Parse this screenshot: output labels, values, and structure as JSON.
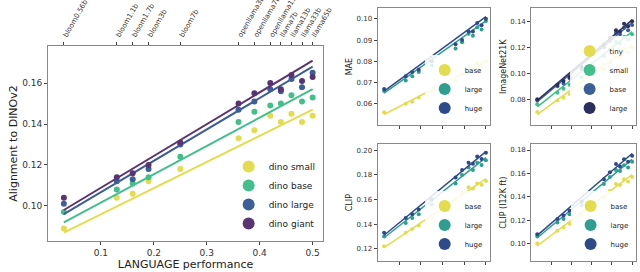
{
  "chart_data": [
    {
      "type": "scatter",
      "x_label": "LANGUAGE performance",
      "y_label": "Alignment to DINOv2",
      "x": [
        0.03,
        0.13,
        0.16,
        0.19,
        0.25,
        0.36,
        0.39,
        0.42,
        0.44,
        0.46,
        0.48,
        0.5
      ],
      "xlim": [
        0,
        0.52
      ],
      "xticks": [
        0.1,
        0.2,
        0.3,
        0.4,
        0.5
      ],
      "x2lim": [
        0,
        0.52
      ],
      "x2ticks": [
        {
          "value": 0.03,
          "label": "bloom0.56b"
        },
        {
          "value": 0.13,
          "label": "bloom1.1b"
        },
        {
          "value": 0.16,
          "label": "bloom1.7b"
        },
        {
          "value": 0.19,
          "label": "bloom3b"
        },
        {
          "value": 0.25,
          "label": "bloom7b"
        },
        {
          "value": 0.36,
          "label": "openllama3b"
        },
        {
          "value": 0.39,
          "label": "openllama7b"
        },
        {
          "value": 0.42,
          "label": "openllama13b"
        },
        {
          "value": 0.44,
          "label": "llama7b"
        },
        {
          "value": 0.46,
          "label": "llama13b"
        },
        {
          "value": 0.48,
          "label": "llama33b"
        },
        {
          "value": 0.5,
          "label": "llama65b"
        }
      ],
      "ylim": [
        0.083,
        0.178
      ],
      "yticks": [
        {
          "value": 0.1,
          "label": "0.10"
        },
        0.12,
        0.14,
        0.16
      ],
      "grid": false,
      "legend": "lower right",
      "series": [
        {
          "name": "dino small",
          "color": "#e3dc4f",
          "values": [
            0.089,
            0.104,
            0.106,
            0.112,
            0.118,
            0.133,
            0.137,
            0.144,
            0.141,
            0.145,
            0.141,
            0.144
          ],
          "trend": {
            "x": [
              0.03,
              0.5
            ],
            "values": [
              0.087,
              0.147
            ]
          }
        },
        {
          "name": "dino base",
          "color": "#43bf8c",
          "values": [
            0.097,
            0.108,
            0.111,
            0.114,
            0.124,
            0.141,
            0.146,
            0.149,
            0.15,
            0.154,
            0.151,
            0.153
          ],
          "trend": {
            "x": [
              0.03,
              0.5
            ],
            "values": [
              0.092,
              0.157
            ]
          }
        },
        {
          "name": "dino large",
          "color": "#3c5f98",
          "values": [
            0.101,
            0.112,
            0.113,
            0.118,
            0.13,
            0.147,
            0.151,
            0.157,
            0.156,
            0.162,
            0.158,
            0.165
          ],
          "trend": {
            "x": [
              0.03,
              0.5
            ],
            "values": [
              0.096,
              0.168
            ]
          }
        },
        {
          "name": "dino giant",
          "color": "#5a3373",
          "values": [
            0.104,
            0.114,
            0.116,
            0.12,
            0.131,
            0.15,
            0.155,
            0.16,
            0.157,
            0.164,
            0.161,
            0.163
          ],
          "trend": {
            "x": [
              0.03,
              0.5
            ],
            "values": [
              0.098,
              0.171
            ]
          }
        }
      ]
    },
    {
      "type": "scatter",
      "y_label": "MAE",
      "x": [
        0.03,
        0.13,
        0.16,
        0.19,
        0.25,
        0.36,
        0.39,
        0.42,
        0.44,
        0.46,
        0.48,
        0.5
      ],
      "xlim": [
        0,
        0.52
      ],
      "xticks": [
        0.1,
        0.2,
        0.3,
        0.4,
        0.5
      ],
      "ylim": [
        0.05,
        0.105
      ],
      "yticks": [
        0.06,
        0.07,
        0.08,
        0.09,
        {
          "value": 0.1,
          "label": "0.10"
        }
      ],
      "grid": false,
      "legend": "lower right",
      "tick_labels": "y",
      "series": [
        {
          "name": "base",
          "color": "#e3dc4f",
          "values": [
            0.056,
            0.06,
            0.061,
            0.063,
            0.066,
            0.071,
            0.074,
            0.077,
            0.076,
            0.079,
            0.078,
            0.08
          ],
          "trend": {
            "x": [
              0.03,
              0.5
            ],
            "values": [
              0.055,
              0.08
            ]
          }
        },
        {
          "name": "large",
          "color": "#2f9e91",
          "values": [
            0.066,
            0.071,
            0.073,
            0.075,
            0.078,
            0.086,
            0.089,
            0.093,
            0.092,
            0.096,
            0.095,
            0.099
          ],
          "trend": {
            "x": [
              0.03,
              0.5
            ],
            "values": [
              0.065,
              0.099
            ]
          }
        },
        {
          "name": "huge",
          "color": "#2f4a8a",
          "values": [
            0.067,
            0.073,
            0.075,
            0.076,
            0.08,
            0.088,
            0.09,
            0.094,
            0.094,
            0.098,
            0.097,
            0.1
          ],
          "trend": {
            "x": [
              0.03,
              0.5
            ],
            "values": [
              0.066,
              0.101
            ]
          }
        }
      ]
    },
    {
      "type": "scatter",
      "y_label": "ImageNet21K",
      "x": [
        0.03,
        0.13,
        0.16,
        0.19,
        0.25,
        0.36,
        0.39,
        0.42,
        0.44,
        0.46,
        0.48,
        0.5
      ],
      "xlim": [
        0,
        0.52
      ],
      "xticks": [
        0.1,
        0.2,
        0.3,
        0.4,
        0.5
      ],
      "ylim": [
        0.06,
        0.15
      ],
      "yticks": [
        0.08,
        {
          "value": 0.1,
          "label": "0.10"
        },
        0.12,
        0.14
      ],
      "grid": false,
      "legend": "lower right",
      "tick_labels": "y",
      "series": [
        {
          "name": "tiny",
          "color": "#e3dc4f",
          "values": [
            0.07,
            0.079,
            0.081,
            0.084,
            0.089,
            0.103,
            0.108,
            0.113,
            0.112,
            0.118,
            0.116,
            0.12
          ],
          "trend": {
            "x": [
              0.03,
              0.5
            ],
            "values": [
              0.068,
              0.122
            ]
          }
        },
        {
          "name": "small",
          "color": "#43bf8c",
          "values": [
            0.076,
            0.085,
            0.088,
            0.091,
            0.097,
            0.113,
            0.118,
            0.124,
            0.123,
            0.128,
            0.126,
            0.13
          ],
          "trend": {
            "x": [
              0.03,
              0.5
            ],
            "values": [
              0.074,
              0.132
            ]
          }
        },
        {
          "name": "base",
          "color": "#3c5f98",
          "values": [
            0.079,
            0.09,
            0.092,
            0.096,
            0.103,
            0.12,
            0.125,
            0.131,
            0.13,
            0.135,
            0.133,
            0.137
          ],
          "trend": {
            "x": [
              0.03,
              0.5
            ],
            "values": [
              0.078,
              0.139
            ]
          }
        },
        {
          "name": "large",
          "color": "#2b2f5e",
          "values": [
            0.08,
            0.091,
            0.094,
            0.097,
            0.105,
            0.122,
            0.127,
            0.133,
            0.132,
            0.138,
            0.136,
            0.14
          ],
          "trend": {
            "x": [
              0.03,
              0.5
            ],
            "values": [
              0.079,
              0.141
            ]
          }
        }
      ]
    },
    {
      "type": "scatter",
      "y_label": "CLIP",
      "x": [
        0.03,
        0.13,
        0.16,
        0.19,
        0.25,
        0.36,
        0.39,
        0.42,
        0.44,
        0.46,
        0.48,
        0.5
      ],
      "xlim": [
        0,
        0.52
      ],
      "xticks": [
        0.1,
        0.2,
        0.3,
        0.4,
        0.5
      ],
      "ylim": [
        0.11,
        0.205
      ],
      "yticks": [
        0.12,
        0.14,
        0.16,
        0.18,
        {
          "value": 0.2,
          "label": "0.20"
        }
      ],
      "grid": false,
      "legend": "lower right",
      "tick_labels": "y",
      "series": [
        {
          "name": "base",
          "color": "#e3dc4f",
          "values": [
            0.122,
            0.133,
            0.136,
            0.139,
            0.145,
            0.16,
            0.165,
            0.17,
            0.169,
            0.173,
            0.172,
            0.175
          ],
          "trend": {
            "x": [
              0.03,
              0.5
            ],
            "values": [
              0.121,
              0.177
            ]
          }
        },
        {
          "name": "large",
          "color": "#2f9e91",
          "values": [
            0.13,
            0.141,
            0.145,
            0.148,
            0.156,
            0.173,
            0.18,
            0.186,
            0.184,
            0.19,
            0.188,
            0.192
          ],
          "trend": {
            "x": [
              0.03,
              0.5
            ],
            "values": [
              0.129,
              0.194
            ]
          }
        },
        {
          "name": "huge",
          "color": "#2f4a8a",
          "values": [
            0.133,
            0.145,
            0.148,
            0.152,
            0.16,
            0.178,
            0.184,
            0.19,
            0.189,
            0.195,
            0.193,
            0.198
          ],
          "trend": {
            "x": [
              0.03,
              0.5
            ],
            "values": [
              0.131,
              0.199
            ]
          }
        }
      ]
    },
    {
      "type": "scatter",
      "y_label": "CLIP (I12K ft)",
      "x": [
        0.03,
        0.13,
        0.16,
        0.19,
        0.25,
        0.36,
        0.39,
        0.42,
        0.44,
        0.46,
        0.48,
        0.5
      ],
      "xlim": [
        0,
        0.52
      ],
      "xticks": [
        0.1,
        0.2,
        0.3,
        0.4,
        0.5
      ],
      "ylim": [
        0.085,
        0.185
      ],
      "yticks": [
        {
          "value": 0.1,
          "label": "0.10"
        },
        0.12,
        0.14,
        0.16,
        0.18
      ],
      "grid": false,
      "legend": "lower right",
      "tick_labels": "y",
      "series": [
        {
          "name": "base",
          "color": "#e3dc4f",
          "values": [
            0.1,
            0.111,
            0.114,
            0.117,
            0.124,
            0.14,
            0.145,
            0.151,
            0.15,
            0.155,
            0.153,
            0.157
          ],
          "trend": {
            "x": [
              0.03,
              0.5
            ],
            "values": [
              0.098,
              0.159
            ]
          }
        },
        {
          "name": "large",
          "color": "#2f9e91",
          "values": [
            0.106,
            0.118,
            0.121,
            0.125,
            0.133,
            0.151,
            0.157,
            0.163,
            0.162,
            0.167,
            0.165,
            0.17
          ],
          "trend": {
            "x": [
              0.03,
              0.5
            ],
            "values": [
              0.105,
              0.172
            ]
          }
        },
        {
          "name": "huge",
          "color": "#2f4a8a",
          "values": [
            0.108,
            0.121,
            0.124,
            0.128,
            0.136,
            0.155,
            0.161,
            0.168,
            0.166,
            0.172,
            0.17,
            0.175
          ],
          "trend": {
            "x": [
              0.03,
              0.5
            ],
            "values": [
              0.107,
              0.177
            ]
          }
        }
      ]
    }
  ]
}
